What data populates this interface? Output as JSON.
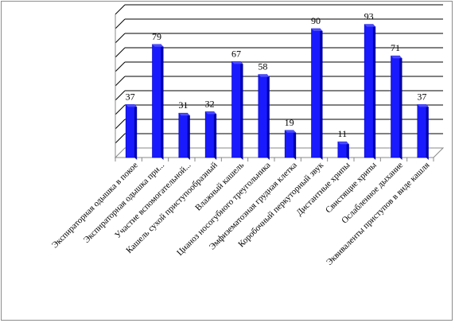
{
  "chart_data": {
    "type": "bar",
    "title": "",
    "xlabel": "",
    "ylabel": "",
    "ylim": [
      0,
      100
    ],
    "grid": true,
    "legend": "none",
    "bar_color": "#1a1aff",
    "bar_side_color": "#0000a8",
    "bar_top_color": "#4d4dff",
    "grid_color": "#000000",
    "categories": [
      "Экспираторная одышка в покое",
      "Экспираторная одышка при...",
      "Участие вспомогательной...",
      "Кашель сухой приступообразный",
      "Влажный  кашель",
      "Цианоз носогубного треугольника",
      "Эмфизематозная грудная клетка",
      "Коробочный перкуторный звук",
      "Дистантные хрипы",
      "Свистящие хрипы",
      "Ослабленное дыхание",
      "Эквиваленты приступов в виде кашля"
    ],
    "values": [
      37,
      79,
      31,
      32,
      67,
      58,
      19,
      90,
      11,
      93,
      71,
      37
    ]
  }
}
